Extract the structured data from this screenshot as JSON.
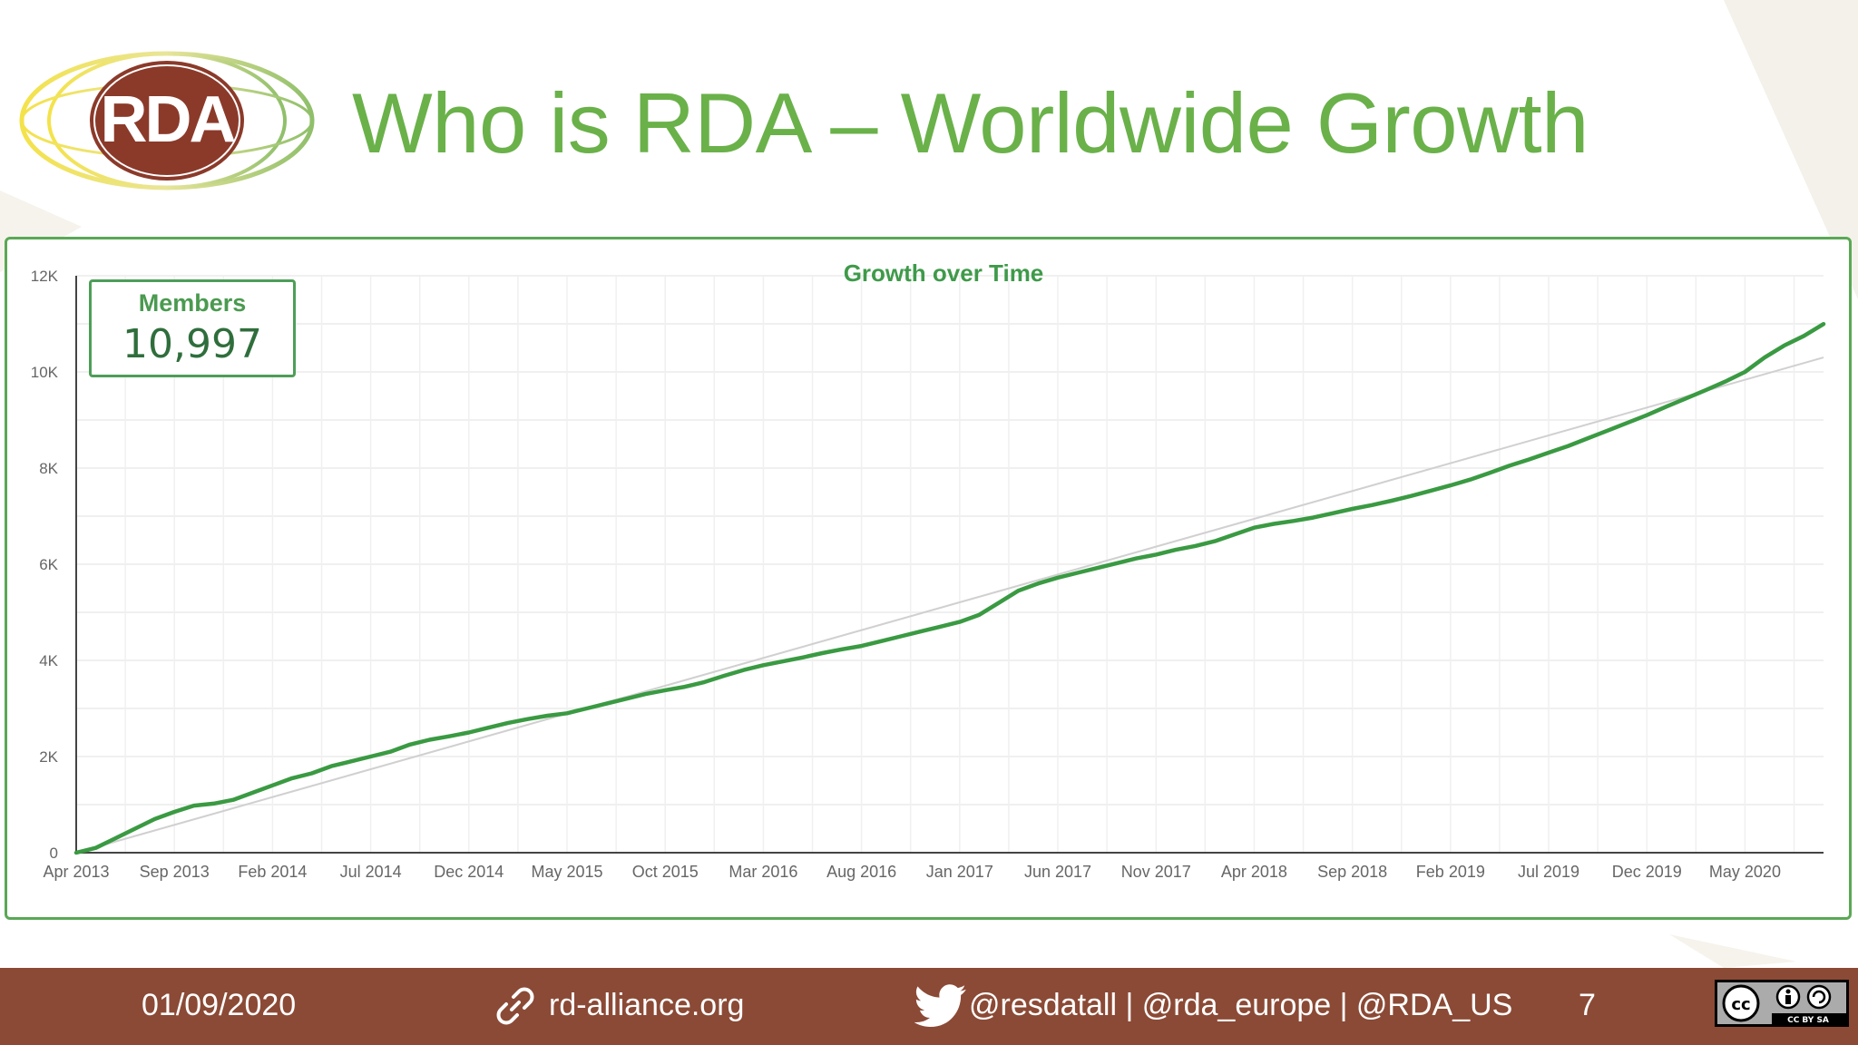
{
  "header": {
    "logo_text": "RDA",
    "title": "Who is RDA – Worldwide Growth"
  },
  "members_card": {
    "label": "Members",
    "value": "10,997"
  },
  "footer": {
    "date": "01/09/2020",
    "website": "rd-alliance.org",
    "twitter_handles": "@resdatall | @rda_europe | @RDA_US",
    "page_number": "7",
    "license": "CC BY SA"
  },
  "colors": {
    "title_green": "#6ab14a",
    "series_green": "#3a9a42",
    "frame_green": "#5aa855",
    "footer_brown": "#8b4a36",
    "trend_gray": "#d0d0d0"
  },
  "chart_data": {
    "type": "line",
    "title": "Growth over Time",
    "xlabel": "",
    "ylabel": "",
    "ylim": [
      0,
      12000
    ],
    "yticks": [
      0,
      2000,
      4000,
      6000,
      8000,
      10000,
      12000
    ],
    "ytick_labels": [
      "0",
      "2K",
      "4K",
      "6K",
      "8K",
      "10K",
      "12K"
    ],
    "x_start": "2013-04",
    "x_end": "2020-09",
    "x_tick_labels": [
      "Apr 2013",
      "Sep 2013",
      "Feb 2014",
      "Jul 2014",
      "Dec 2014",
      "May 2015",
      "Oct 2015",
      "Mar 2016",
      "Aug 2016",
      "Jan 2017",
      "Jun 2017",
      "Nov 2017",
      "Apr 2018",
      "Sep 2018",
      "Feb 2019",
      "Jul 2019",
      "Dec 2019",
      "May 2020"
    ],
    "grid": true,
    "legend": "none",
    "series": [
      {
        "x": [
          "2013-04",
          "2013-05",
          "2013-06",
          "2013-07",
          "2013-08",
          "2013-09",
          "2013-10",
          "2013-11",
          "2013-12",
          "2014-01",
          "2014-02",
          "2014-03",
          "2014-04",
          "2014-05",
          "2014-06",
          "2014-07",
          "2014-08",
          "2014-09",
          "2014-10",
          "2014-11",
          "2014-12",
          "2015-01",
          "2015-02",
          "2015-03",
          "2015-04",
          "2015-05",
          "2015-06",
          "2015-07",
          "2015-08",
          "2015-09",
          "2015-10",
          "2015-11",
          "2015-12",
          "2016-01",
          "2016-02",
          "2016-03",
          "2016-04",
          "2016-05",
          "2016-06",
          "2016-07",
          "2016-08",
          "2016-09",
          "2016-10",
          "2016-11",
          "2016-12",
          "2017-01",
          "2017-02",
          "2017-03",
          "2017-04",
          "2017-05",
          "2017-06",
          "2017-07",
          "2017-08",
          "2017-09",
          "2017-10",
          "2017-11",
          "2017-12",
          "2018-01",
          "2018-02",
          "2018-03",
          "2018-04",
          "2018-05",
          "2018-06",
          "2018-07",
          "2018-08",
          "2018-09",
          "2018-10",
          "2018-11",
          "2018-12",
          "2019-01",
          "2019-02",
          "2019-03",
          "2019-04",
          "2019-05",
          "2019-06",
          "2019-07",
          "2019-08",
          "2019-09",
          "2019-10",
          "2019-11",
          "2019-12",
          "2020-01",
          "2020-02",
          "2020-03",
          "2020-04",
          "2020-05",
          "2020-06",
          "2020-07",
          "2020-08",
          "2020-09"
        ],
        "values": [
          0,
          100,
          300,
          500,
          700,
          850,
          980,
          1020,
          1100,
          1250,
          1400,
          1550,
          1650,
          1800,
          1900,
          2000,
          2100,
          2250,
          2350,
          2420,
          2500,
          2600,
          2700,
          2780,
          2850,
          2900,
          3000,
          3100,
          3200,
          3300,
          3380,
          3450,
          3550,
          3680,
          3800,
          3900,
          3980,
          4060,
          4150,
          4230,
          4300,
          4400,
          4500,
          4600,
          4700,
          4800,
          4950,
          5200,
          5450,
          5600,
          5720,
          5820,
          5920,
          6020,
          6120,
          6200,
          6300,
          6380,
          6480,
          6620,
          6760,
          6840,
          6900,
          6970,
          7060,
          7150,
          7230,
          7320,
          7420,
          7530,
          7640,
          7760,
          7900,
          8050,
          8180,
          8320,
          8460,
          8620,
          8780,
          8940,
          9100,
          9280,
          9450,
          9620,
          9800,
          10000,
          10300,
          10550,
          10750,
          10997
        ]
      }
    ],
    "trend_line": {
      "start": 0,
      "end": 10300
    }
  }
}
